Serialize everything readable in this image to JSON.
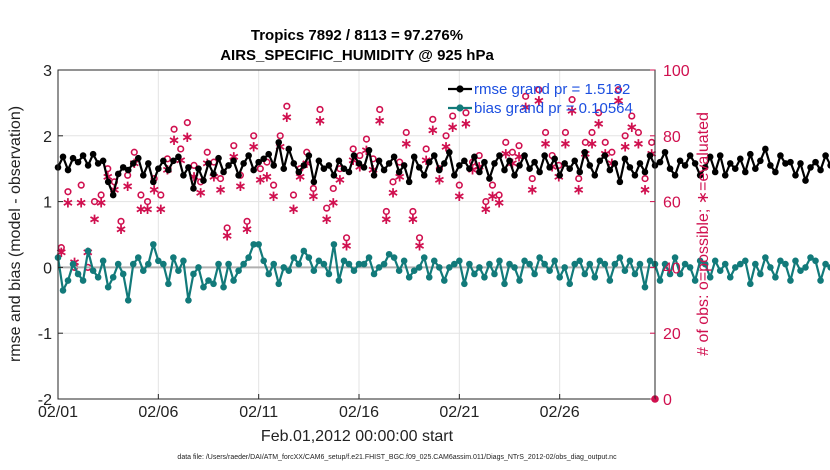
{
  "chart_data": {
    "type": "line",
    "title": "Tropics 7892 / 8113 = 97.276%",
    "subtitle": "AIRS_SPECIFIC_HUMIDITY @ 925 hPa",
    "xlabel": "Feb.01,2012 00:00:00 start",
    "ylabel": "rmse and bias (model - observation)",
    "y2label": "# of obs: o=possible; ∗=evaluated",
    "footer": "data file: /Users/raeder/DAI/ATM_forcXX/CAM6_setup/f.e21.FHIST_BGC.f09_025.CAM6assim.011/Diags_NTrS_2012-02/obs_diag_output.nc",
    "xlim": [
      0,
      29.75
    ],
    "ylim": [
      -2,
      3
    ],
    "y2lim": [
      0,
      100
    ],
    "x_ticks": [
      {
        "label": "02/01",
        "value": 0
      },
      {
        "label": "02/06",
        "value": 5
      },
      {
        "label": "02/11",
        "value": 10
      },
      {
        "label": "02/16",
        "value": 15
      },
      {
        "label": "02/21",
        "value": 20
      },
      {
        "label": "02/26",
        "value": 25
      }
    ],
    "y_ticks": [
      {
        "label": "-2",
        "value": -2
      },
      {
        "label": "-1",
        "value": -1
      },
      {
        "label": "0",
        "value": 0
      },
      {
        "label": "1",
        "value": 1
      },
      {
        "label": "2",
        "value": 2
      },
      {
        "label": "3",
        "value": 3
      }
    ],
    "y2_ticks": [
      {
        "label": "0",
        "value": 0
      },
      {
        "label": "20",
        "value": 20
      },
      {
        "label": "40",
        "value": 40
      },
      {
        "label": "60",
        "value": 60
      },
      {
        "label": "80",
        "value": 80
      },
      {
        "label": "100",
        "value": 100
      }
    ],
    "grid": true,
    "legend_position": "top-right",
    "colors": {
      "rmse": "#000000",
      "bias": "#127a7a",
      "obs": "#d0104f",
      "legend_text": "#1c4fe0",
      "zero_line": "#b0b0b0"
    },
    "x_step_days": 0.25,
    "series": [
      {
        "name": "rmse grand pr = 1.5132",
        "axis": "left",
        "values": [
          1.52,
          1.68,
          1.48,
          1.66,
          1.6,
          1.7,
          1.55,
          1.72,
          1.58,
          1.62,
          1.3,
          1.1,
          1.42,
          1.52,
          1.48,
          1.58,
          1.66,
          1.4,
          1.58,
          1.3,
          1.5,
          1.62,
          1.48,
          1.62,
          1.68,
          1.4,
          1.52,
          1.2,
          1.5,
          1.32,
          1.58,
          1.42,
          1.66,
          1.45,
          1.55,
          1.62,
          1.4,
          1.58,
          1.7,
          1.48,
          1.6,
          1.65,
          1.72,
          1.55,
          1.9,
          1.5,
          1.8,
          1.58,
          1.45,
          1.55,
          1.7,
          1.3,
          1.62,
          1.5,
          1.55,
          1.4,
          1.62,
          1.5,
          1.45,
          1.7,
          1.58,
          1.52,
          1.78,
          1.4,
          1.62,
          1.48,
          1.58,
          1.68,
          1.45,
          1.55,
          1.3,
          1.68,
          1.52,
          1.4,
          1.6,
          1.7,
          1.48,
          1.58,
          1.75,
          1.4,
          1.55,
          1.62,
          1.5,
          1.68,
          1.45,
          1.6,
          1.35,
          1.58,
          1.7,
          1.48,
          1.62,
          1.4,
          1.55,
          1.7,
          1.5,
          1.6,
          1.45,
          1.7,
          1.52,
          1.65,
          1.4,
          1.58,
          1.5,
          1.62,
          1.45,
          1.75,
          1.55,
          1.4,
          1.62,
          1.7,
          1.48,
          1.58,
          1.3,
          1.65,
          1.52,
          1.4,
          1.58,
          1.45,
          1.7,
          1.55,
          1.6,
          1.75,
          1.5,
          1.4,
          1.62,
          1.55,
          1.7,
          1.58,
          1.4,
          1.52,
          1.68,
          1.45,
          1.7,
          1.4,
          1.58,
          1.5,
          1.65,
          1.45,
          1.72,
          1.5,
          1.62,
          1.8,
          1.55,
          1.45,
          1.7,
          1.58,
          1.6,
          1.4,
          1.58,
          1.32,
          1.52,
          1.6,
          1.48,
          1.7,
          1.55,
          1.62,
          1.45,
          1.66,
          1.58,
          1.64,
          1.62,
          1.6,
          1.58,
          1.62,
          1.5,
          1.58,
          1.62,
          1.55,
          1.45,
          1.32,
          1.4,
          1.5,
          1.62,
          1.48,
          1.72,
          1.5,
          1.58,
          1.3,
          1.65,
          1.45,
          1.55,
          1.6,
          1.7,
          1.45,
          1.62,
          1.4,
          1.55,
          1.62,
          1.3,
          1.58,
          1.5,
          1.6,
          1.68,
          1.48,
          1.58,
          1.52,
          1.62,
          1.65,
          1.58,
          1.4,
          1.55,
          1.62,
          1.45,
          1.72,
          1.5,
          1.4,
          1.58,
          1.65,
          1.48,
          1.6,
          1.55,
          1.4,
          1.62,
          1.7,
          1.5,
          1.58,
          1.45,
          1.62,
          1.55,
          1.4,
          1.58,
          1.5,
          1.6,
          1.42,
          1.68,
          1.5,
          1.58,
          1.35,
          1.6,
          1.52,
          1.48,
          1.62,
          1.55,
          1.45,
          1.7,
          1.5,
          1.62,
          1.4,
          1.58,
          1.5,
          1.62,
          1.45,
          1.58,
          1.52,
          1.58,
          1.48,
          1.6,
          1.55,
          1.6,
          1.58,
          1.45,
          1.58,
          1.3,
          1.55,
          1.48,
          1.62,
          1.55,
          1.58,
          1.4,
          1.6,
          1.52,
          1.58,
          1.5,
          1.62,
          1.55,
          1.58,
          1.5,
          1.6,
          1.48,
          1.62,
          1.4,
          1.55,
          1.45,
          1.62,
          1.58,
          1.6,
          1.55,
          1.38,
          1.55,
          1.5,
          1.45,
          1.62,
          1.4,
          1.55,
          1.5,
          1.62,
          1.6,
          1.5,
          1.45,
          1.6,
          1.42,
          1.55,
          1.5,
          1.62,
          1.55,
          1.45,
          1.6,
          1.52,
          1.55,
          1.58,
          1.62,
          1.55,
          1.5,
          1.48,
          1.55,
          1.62,
          1.45,
          1.55,
          1.6,
          1.5,
          1.58,
          1.65,
          1.48,
          1.62,
          1.55,
          1.5,
          1.58,
          1.4,
          1.55,
          1.62,
          1.5,
          1.58,
          1.45,
          1.55,
          1.6,
          1.52,
          1.48,
          1.55,
          1.6,
          1.5,
          1.58,
          1.45,
          1.62,
          1.55,
          1.5,
          1.6,
          1.58,
          1.48,
          1.55,
          1.62,
          1.5,
          1.58,
          1.55,
          1.6,
          1.48,
          1.58,
          1.62,
          1.55,
          1.45,
          1.58
        ]
      },
      {
        "name": "bias grand pr = 0.10564",
        "axis": "left",
        "values": [
          0.15,
          -0.35,
          -0.2,
          0.05,
          -0.1,
          -0.2,
          0.25,
          -0.05,
          -0.15,
          0.1,
          -0.3,
          -0.15,
          0.05,
          -0.1,
          -0.5,
          0.05,
          0.15,
          -0.05,
          0.05,
          0.35,
          0.1,
          0.05,
          -0.25,
          0.15,
          -0.05,
          0.1,
          -0.5,
          -0.1,
          0.0,
          -0.3,
          -0.2,
          -0.25,
          0.05,
          -0.3,
          0.05,
          -0.2,
          -0.05,
          0.05,
          0.15,
          0.35,
          0.35,
          0.1,
          -0.1,
          0.05,
          -0.25,
          0.0,
          -0.05,
          0.15,
          0.05,
          0.25,
          0.15,
          -0.05,
          0.1,
          0.05,
          -0.1,
          0.35,
          -0.2,
          0.1,
          0.05,
          -0.05,
          0.05,
          0.05,
          0.15,
          -0.1,
          0.0,
          0.05,
          0.2,
          0.15,
          -0.05,
          0.1,
          -0.15,
          -0.05,
          0.0,
          0.15,
          -0.15,
          0.1,
          0.0,
          -0.2,
          0.0,
          0.05,
          0.1,
          -0.25,
          0.05,
          -0.1,
          0.0,
          -0.15,
          0.05,
          -0.1,
          0.1,
          -0.25,
          0.05,
          0.0,
          -0.2,
          0.1,
          0.05,
          -0.1,
          0.15,
          0.05,
          -0.05,
          0.1,
          -0.15,
          0.0,
          -0.25,
          0.05,
          0.1,
          -0.1,
          0.05,
          -0.15,
          0.1,
          0.05,
          -0.2,
          0.05,
          0.15,
          -0.05,
          0.1,
          -0.1,
          0.05,
          -0.3,
          0.1,
          0.05,
          -0.2,
          0.05,
          -0.1,
          0.15,
          -0.1,
          0.05,
          0.0,
          -0.2,
          0.1,
          0.05,
          -0.15,
          0.1,
          -0.05,
          0.05,
          -0.15,
          0.0,
          0.05,
          0.1,
          -0.25,
          0.05,
          -0.1,
          0.15,
          0.0,
          -0.15,
          0.1,
          0.05,
          -0.2,
          0.1,
          -0.05,
          0.0,
          0.15,
          0.1,
          -0.2,
          0.05,
          0.0,
          0.15,
          -0.1,
          0.05,
          -0.15,
          0.1,
          0.0,
          -0.05,
          0.05,
          0.1,
          -0.1,
          0.05,
          0.0,
          0.1,
          -0.05,
          0.15,
          -0.1,
          0.1,
          0.0,
          0.05,
          -0.05,
          0.1,
          0.0,
          0.05,
          -0.15,
          0.1,
          0.0,
          -0.05,
          0.15,
          0.05,
          -0.05,
          0.1,
          -0.1,
          0.05,
          0.0,
          0.1,
          -0.15,
          0.05,
          -0.2,
          0.1,
          0.05,
          0.15,
          -0.25,
          0.05,
          0.1,
          0.0,
          -0.2,
          0.15,
          0.05,
          0.1,
          0.0,
          0.2,
          -0.05,
          0.1,
          0.0,
          0.05,
          -0.1,
          0.15,
          0.05,
          0.0,
          0.1,
          0.05,
          -0.05,
          0.1,
          0.15,
          0.0,
          0.1,
          0.05,
          0.2,
          0.1,
          0.0,
          0.05,
          0.15,
          0.05,
          0.1,
          0.0,
          0.15,
          0.05,
          0.1,
          0.2,
          0.05,
          0.15,
          0.1,
          0.05,
          0.0,
          0.15,
          0.1,
          0.2,
          0.05,
          0.1,
          0.0,
          0.15,
          0.1,
          0.05,
          0.2,
          0.1,
          0.15,
          0.05,
          0.1,
          0.0,
          0.15,
          0.1,
          0.05,
          0.2,
          0.1,
          0.15,
          0.25,
          0.1,
          0.05,
          0.15,
          0.1,
          0.2,
          0.05,
          0.15,
          0.1,
          0.0,
          0.15,
          0.1,
          0.2,
          0.05,
          0.1,
          0.15,
          0.2,
          0.1,
          0.05,
          0.15,
          0.1,
          0.2,
          0.15,
          0.1,
          0.05,
          0.2,
          0.15,
          0.1,
          0.25,
          0.15,
          0.1,
          0.2,
          0.15,
          0.05,
          0.15,
          0.2,
          0.1,
          0.15,
          0.2,
          0.1,
          0.15,
          0.25,
          0.15,
          0.1,
          0.2,
          0.15,
          0.1,
          0.2,
          0.15,
          0.25,
          0.15,
          0.1,
          0.2,
          0.15,
          0.1,
          0.15,
          0.2,
          0.15,
          0.1,
          0.2,
          0.15,
          0.25,
          0.15,
          0.1,
          0.2,
          0.15,
          0.1,
          0.2,
          0.15,
          0.1,
          0.2,
          0.15,
          0.1,
          0.15,
          0.2,
          0.1,
          0.15,
          0.2,
          0.1,
          0.15,
          0.2,
          0.1,
          0.15,
          0.2,
          0.15
        ]
      }
    ],
    "obs_series": [
      {
        "name": "# of obs possible",
        "axis": "right",
        "marker": "o",
        "values": [
          46,
          63,
          40,
          65,
          40,
          60,
          62,
          70,
          66,
          54,
          68,
          75,
          62,
          60,
          67,
          62,
          73,
          82,
          76,
          84,
          71,
          66,
          75,
          72,
          67,
          52,
          77,
          68,
          54,
          80,
          70,
          72,
          65,
          80,
          89,
          62,
          70,
          75,
          64,
          88,
          58,
          64,
          70,
          49,
          76,
          74,
          79,
          73,
          88,
          57,
          66,
          72,
          81,
          57,
          49,
          76,
          85,
          70,
          80,
          86,
          65,
          87,
          72,
          74,
          60,
          65,
          62,
          78,
          75,
          77,
          92,
          67,
          94,
          81,
          74,
          71,
          81,
          91,
          67,
          78,
          81,
          87,
          78,
          75,
          94,
          80,
          86,
          81,
          67,
          78
        ]
      },
      {
        "name": "# of obs evaluated",
        "axis": "right",
        "marker": "*",
        "values": [
          45,
          60,
          42,
          60,
          45,
          55,
          60,
          68,
          64,
          52,
          65,
          72,
          58,
          58,
          64,
          58,
          70,
          79,
          73,
          80,
          68,
          63,
          72,
          68,
          64,
          50,
          74,
          65,
          52,
          77,
          67,
          68,
          62,
          77,
          86,
          58,
          68,
          72,
          62,
          85,
          55,
          60,
          67,
          47,
          73,
          71,
          76,
          70,
          85,
          55,
          63,
          68,
          78,
          55,
          47,
          73,
          82,
          67,
          77,
          83,
          62,
          84,
          70,
          71,
          58,
          62,
          60,
          75,
          72,
          74,
          89,
          64,
          91,
          78,
          71,
          68,
          78,
          88,
          64,
          75,
          78,
          84,
          75,
          72,
          91,
          77,
          83,
          78,
          64,
          75
        ]
      }
    ]
  }
}
